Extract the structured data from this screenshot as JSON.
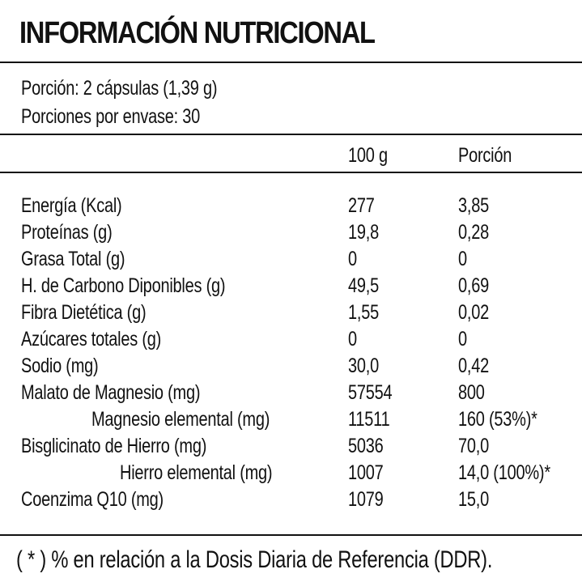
{
  "title": "INFORMACIÓN NUTRICIONAL",
  "serving": {
    "portion": "Porción: 2 cápsulas (1,39 g)",
    "portions_per_container": "Porciones por envase: 30"
  },
  "columns": {
    "per_100g": "100 g",
    "per_portion": "Porción"
  },
  "rows": [
    {
      "label": "Energía (Kcal)",
      "per_100g": "277",
      "per_portion": "3,85"
    },
    {
      "label": "Proteínas (g)",
      "per_100g": "19,8",
      "per_portion": "0,28"
    },
    {
      "label": "Grasa Total (g)",
      "per_100g": "0",
      "per_portion": "0"
    },
    {
      "label": "H. de Carbono Diponibles (g)",
      "per_100g": "49,5",
      "per_portion": "0,69"
    },
    {
      "label": "Fibra Dietética (g)",
      "per_100g": "1,55",
      "per_portion": "0,02"
    },
    {
      "label": "Azúcares totales (g)",
      "per_100g": "0",
      "per_portion": "0"
    },
    {
      "label": "Sodio (mg)",
      "per_100g": "30,0",
      "per_portion": "0,42"
    },
    {
      "label": "Malato de Magnesio (mg)",
      "per_100g": "57554",
      "per_portion": "800"
    },
    {
      "label": "Magnesio elemental (mg)",
      "per_100g": "11511",
      "per_portion": "160 (53%)*"
    },
    {
      "label": "Bisglicinato de Hierro (mg)",
      "per_100g": "5036",
      "per_portion": "70,0"
    },
    {
      "label": "Hierro elemental (mg)",
      "per_100g": "1007",
      "per_portion": "14,0 (100%)*"
    },
    {
      "label": "Coenzima Q10 (mg)",
      "per_100g": "1079",
      "per_portion": "15,0"
    }
  ],
  "footnote": "( * ) % en relación a la Dosis Diaria de Referencia (DDR)."
}
